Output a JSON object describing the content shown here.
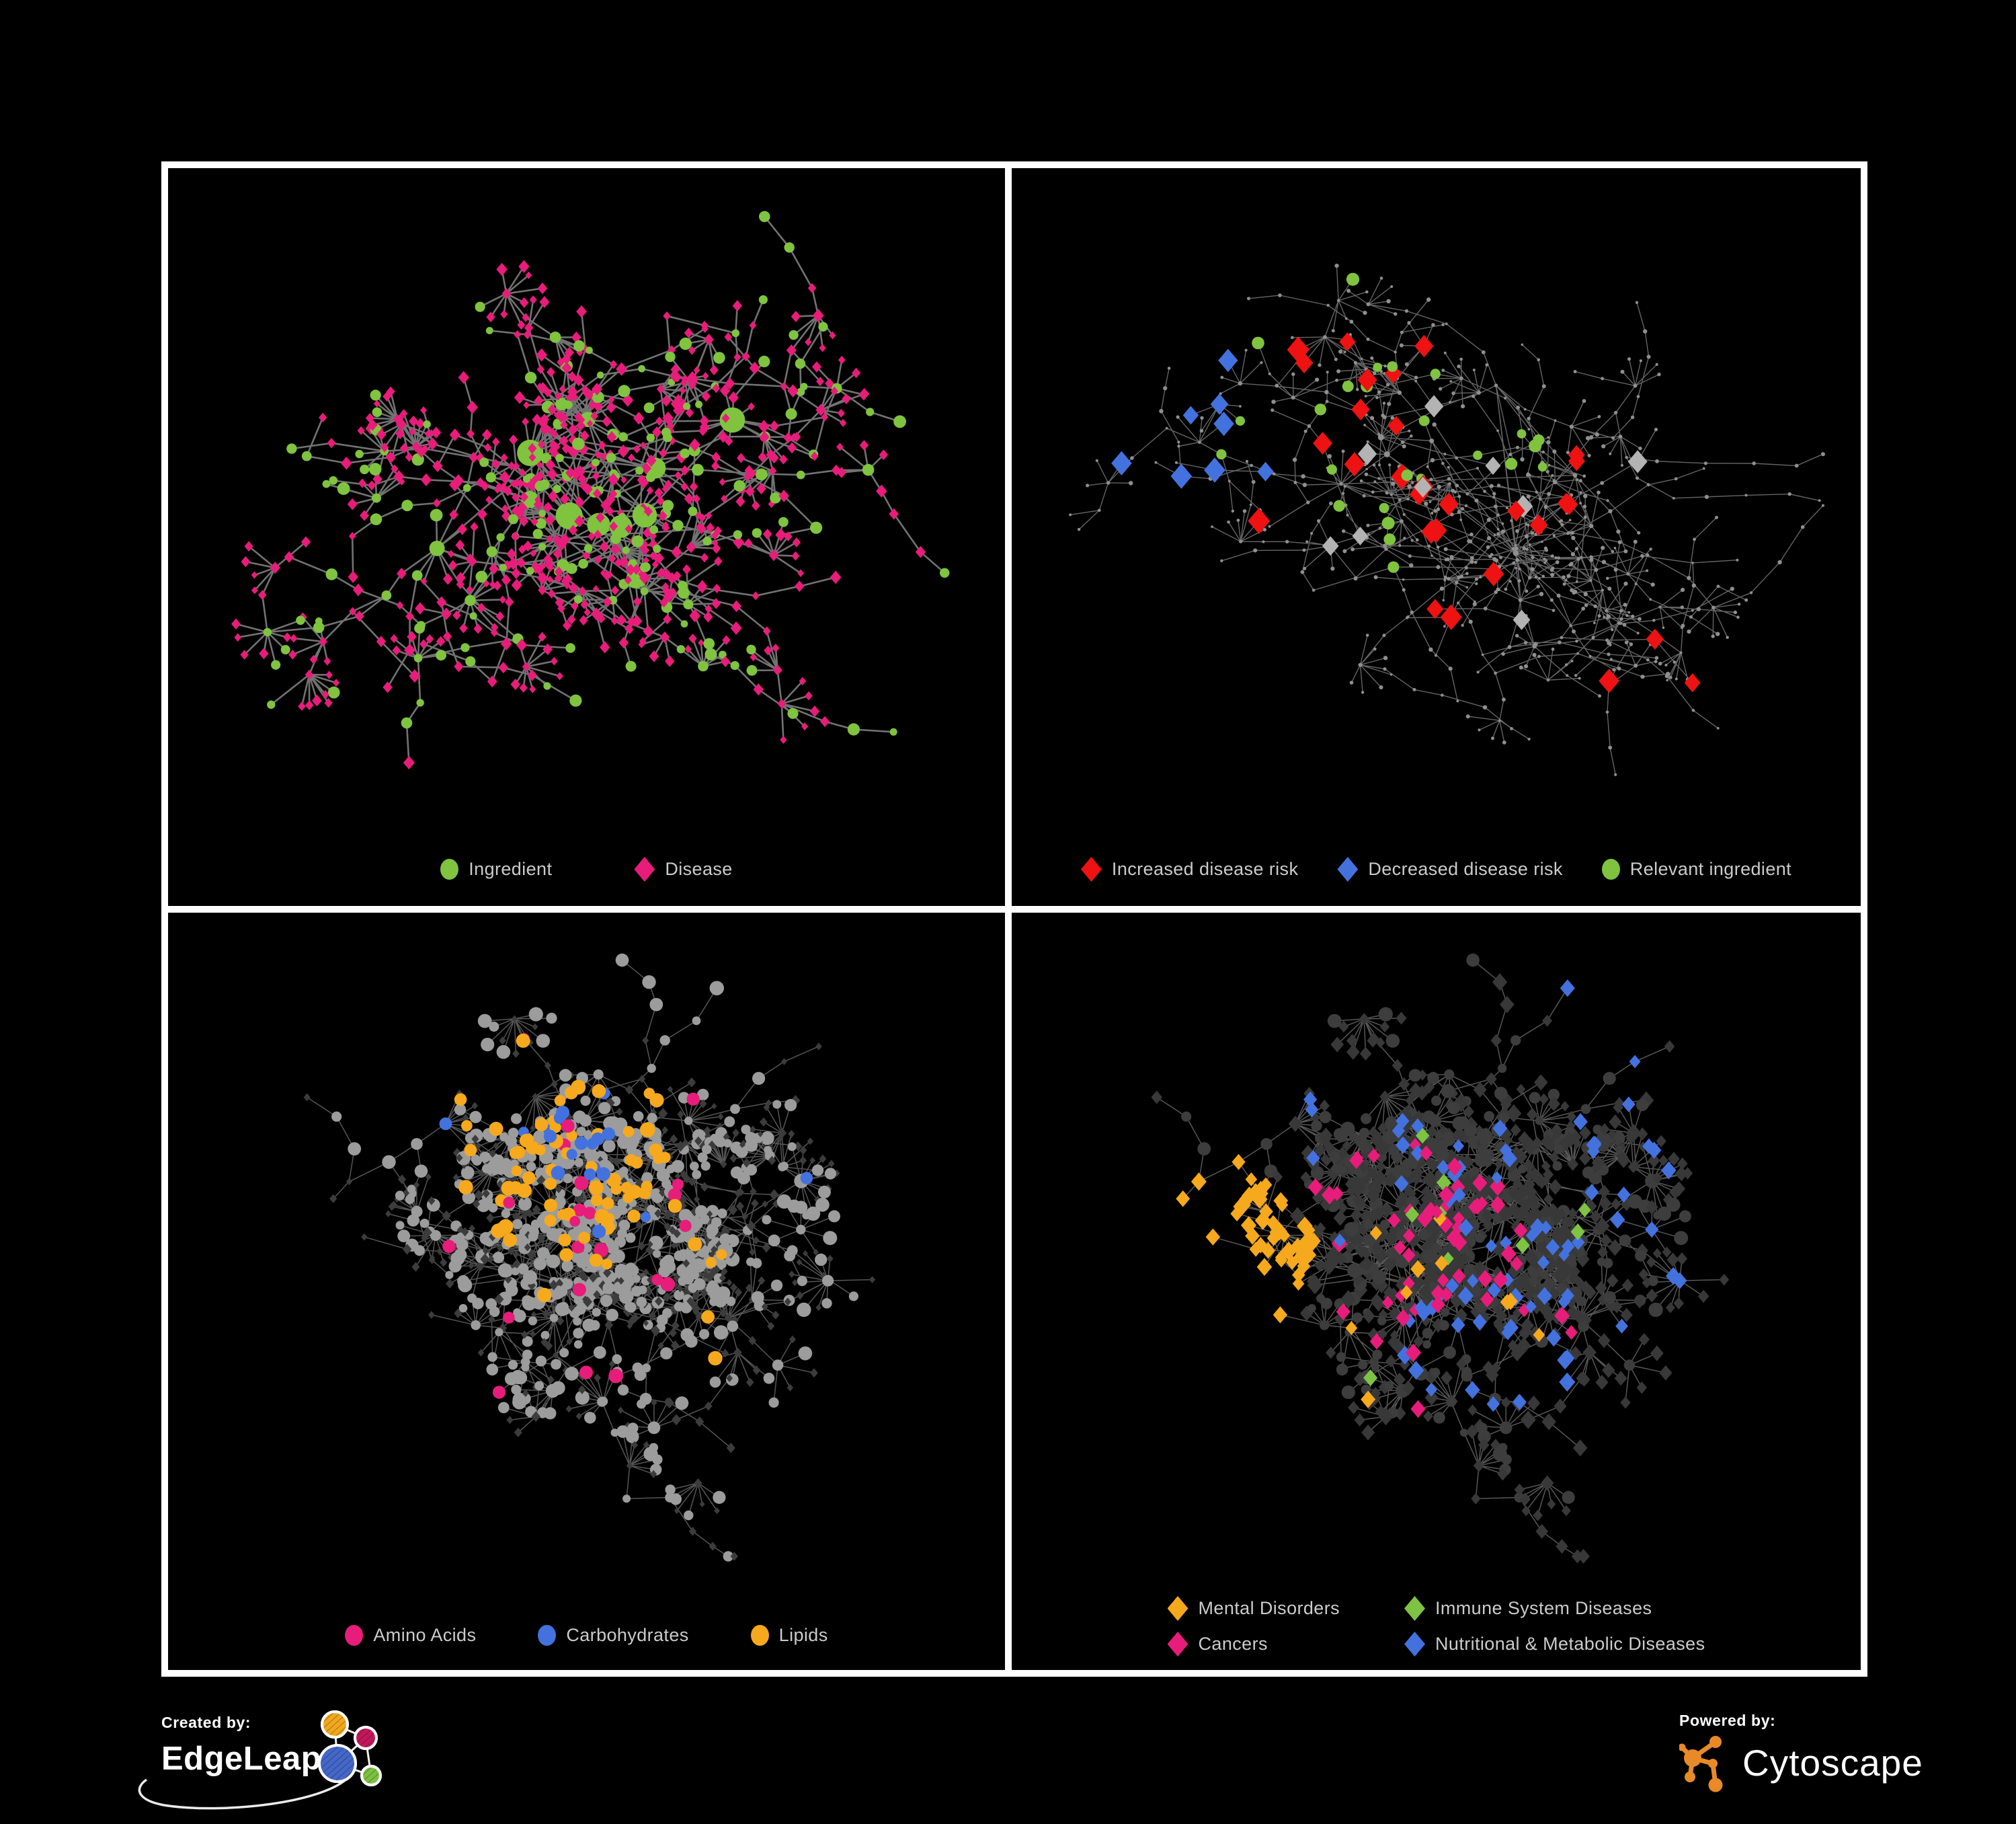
{
  "colors": {
    "background": "#000000",
    "frame": "#FFFFFF",
    "legend_text": "#CBCBCB",
    "green": "#80C33F",
    "pink": "#E81C7A",
    "red": "#EE1212",
    "blue": "#4372DF",
    "orange": "#F6A91C",
    "silver": "#B3B3B3",
    "edgeleap_blue": "#4467C8",
    "edgeleap_pink": "#C2185B",
    "cytoscape_orange": "#E98A28"
  },
  "footer": {
    "created_by": "Created by:",
    "edgeleap": "EdgeLeap",
    "powered_by": "Powered by:",
    "cytoscape": "Cytoscape"
  },
  "panels": [
    {
      "id": "ingredient-disease-network",
      "legend": [
        {
          "label": "Ingredient",
          "shape": "circle",
          "color": "#80C33F"
        },
        {
          "label": "Disease",
          "shape": "diamond",
          "color": "#E81C7A"
        }
      ],
      "render": {
        "seed": 20,
        "scheme": "typed",
        "hubs": 11,
        "hubLinks": 4,
        "branchMin": 3,
        "branchMax": 6,
        "branchLen": 4,
        "step": 52,
        "fanP": 0.17,
        "subP": 0.3,
        "fanMin": 4,
        "fanMax": 9,
        "fanR": 42,
        "hubFanP": 0.55,
        "edge": {
          "color": "#868686",
          "width": 2.6,
          "opacity": 0.85
        },
        "circle": {
          "color": "#80C33F",
          "r": 7,
          "hubR": 15
        },
        "circleShare": 0.33,
        "circleLeafShare": 0.16,
        "diamond": {
          "color": "#E81C7A",
          "r": 6.6
        },
        "groups": []
      }
    },
    {
      "id": "disease-risk-network",
      "legend": [
        {
          "label": "Increased disease risk",
          "shape": "diamond",
          "color": "#EE1212"
        },
        {
          "label": "Decreased disease risk",
          "shape": "diamond",
          "color": "#4372DF"
        },
        {
          "label": "Relevant ingredient",
          "shape": "circle",
          "color": "#80C33F"
        }
      ],
      "render": {
        "seed": 57,
        "scheme": "dim",
        "hubs": 9,
        "hubLinks": 3,
        "branchMin": 3,
        "branchMax": 6,
        "branchLen": 5,
        "step": 48,
        "fanP": 0.12,
        "subP": 0.32,
        "fanMin": 4,
        "fanMax": 8,
        "fanR": 40,
        "hubFanP": 0.3,
        "edge": {
          "color": "#6F6F6F",
          "width": 1.4,
          "opacity": 0.9
        },
        "circle": {
          "color": "#8F8F8F",
          "r": 2.4,
          "hubR": 3.6
        },
        "circleShare": 1.0,
        "diamond": {
          "color": "#8F8F8F",
          "r": 2.4
        },
        "groups": [
          {
            "shape": "diamond",
            "color": "#EE1212",
            "r": 14,
            "count": 26,
            "f": [
              0.45,
              0.38
            ],
            "fr": 0.33
          },
          {
            "shape": "diamond",
            "color": "#EE1212",
            "r": 13,
            "count": 3,
            "f": [
              0.78,
              0.82
            ],
            "fr": 0.1
          },
          {
            "shape": "diamond",
            "color": "#4372DF",
            "r": 13.5,
            "count": 8,
            "f": [
              0.22,
              0.38
            ],
            "fr": 0.15
          },
          {
            "shape": "diamond",
            "color": "#4372DF",
            "r": 13,
            "count": 2,
            "f": [
              0.92,
              0.36
            ],
            "fr": 0.06
          },
          {
            "shape": "diamond",
            "color": "#B3B3B3",
            "r": 13,
            "count": 9,
            "f": [
              0.45,
              0.42
            ],
            "fr": 0.35
          },
          {
            "shape": "circle",
            "color": "#80C33F",
            "r": 8,
            "count": 26,
            "f": [
              0.38,
              0.4
            ],
            "fr": 0.34
          }
        ]
      }
    },
    {
      "id": "compound-classes-network",
      "legend": [
        {
          "label": "Amino Acids",
          "shape": "circle",
          "color": "#E81C7A"
        },
        {
          "label": "Carbohydrates",
          "shape": "circle",
          "color": "#4372DF"
        },
        {
          "label": "Lipids",
          "shape": "circle",
          "color": "#F6A91C"
        }
      ],
      "render": {
        "seed": 88,
        "scheme": "dim",
        "hubs": 10,
        "hubLinks": 3,
        "branchMin": 3,
        "branchMax": 7,
        "branchLen": 4,
        "step": 46,
        "fanP": 0.2,
        "subP": 0.3,
        "fanMin": 5,
        "fanMax": 13,
        "fanR": 44,
        "hubFanP": 0.6,
        "edge": {
          "color": "#9A9A9A",
          "width": 1.5,
          "opacity": 0.55
        },
        "circle": {
          "color": "#9C9C9C",
          "r": 8,
          "hubR": 12
        },
        "circleShare": 0.52,
        "diamond": {
          "color": "#3C3C3C",
          "r": 5.5
        },
        "groups": [
          {
            "shape": "circle",
            "color": "#F6A91C",
            "r": 9.5,
            "count": 58,
            "f": [
              0.45,
              0.32
            ],
            "fr": 0.17
          },
          {
            "shape": "circle",
            "color": "#F6A91C",
            "r": 9,
            "count": 16,
            "f": [
              0.5,
              0.55
            ],
            "fr": 0.55
          },
          {
            "shape": "circle",
            "color": "#4372DF",
            "r": 9,
            "count": 15,
            "f": [
              0.49,
              0.3
            ],
            "fr": 0.09
          },
          {
            "shape": "circle",
            "color": "#4372DF",
            "r": 8.5,
            "count": 4,
            "f": [
              0.5,
              0.6
            ],
            "fr": 0.5
          },
          {
            "shape": "circle",
            "color": "#E81C7A",
            "r": 9,
            "count": 22,
            "f": [
              0.48,
              0.5
            ],
            "fr": 0.6
          }
        ]
      }
    },
    {
      "id": "disease-categories-network",
      "legend": [
        {
          "label": "Mental Disorders",
          "shape": "diamond",
          "color": "#F6A91C"
        },
        {
          "label": "Immune System Diseases",
          "shape": "diamond",
          "color": "#7EC342"
        },
        {
          "label": "Cancers",
          "shape": "diamond",
          "color": "#E81C7A"
        },
        {
          "label": "Nutritional & Metabolic Diseases",
          "shape": "diamond",
          "color": "#4372DF"
        }
      ],
      "render": {
        "seed": 88,
        "scheme": "dim",
        "hubs": 10,
        "hubLinks": 3,
        "branchMin": 3,
        "branchMax": 7,
        "branchLen": 4,
        "step": 46,
        "fanP": 0.2,
        "subP": 0.3,
        "fanMin": 5,
        "fanMax": 13,
        "fanR": 44,
        "hubFanP": 0.6,
        "edge": {
          "color": "#616161",
          "width": 1.5,
          "opacity": 0.9
        },
        "circle": {
          "color": "#3D3D3D",
          "r": 8,
          "hubR": 10
        },
        "circleShare": 0.3,
        "diamond": {
          "color": "#383838",
          "r": 9
        },
        "groups": [
          {
            "shape": "diamond",
            "color": "#F6A91C",
            "r": 10,
            "count": 85,
            "f": [
              0.2,
              0.5
            ],
            "fr": 0.15
          },
          {
            "shape": "diamond",
            "color": "#F6A91C",
            "r": 9.5,
            "count": 10,
            "f": [
              0.4,
              0.75
            ],
            "fr": 0.35
          },
          {
            "shape": "diamond",
            "color": "#E81C7A",
            "r": 10,
            "count": 48,
            "f": [
              0.43,
              0.5
            ],
            "fr": 0.18
          },
          {
            "shape": "diamond",
            "color": "#E81C7A",
            "r": 9.5,
            "count": 6,
            "f": [
              0.92,
              0.25
            ],
            "fr": 0.07
          },
          {
            "shape": "diamond",
            "color": "#E81C7A",
            "r": 9.5,
            "count": 8,
            "f": [
              0.5,
              0.85
            ],
            "fr": 0.3
          },
          {
            "shape": "diamond",
            "color": "#4372DF",
            "r": 10,
            "count": 28,
            "f": [
              0.57,
              0.66
            ],
            "fr": 0.12
          },
          {
            "shape": "diamond",
            "color": "#4372DF",
            "r": 9.5,
            "count": 30,
            "f": [
              0.55,
              0.13
            ],
            "fr": 0.4
          },
          {
            "shape": "diamond",
            "color": "#4372DF",
            "r": 9.5,
            "count": 20,
            "f": [
              0.85,
              0.42
            ],
            "fr": 0.25
          },
          {
            "shape": "diamond",
            "color": "#7EC342",
            "r": 9.5,
            "count": 9,
            "f": [
              0.5,
              0.45
            ],
            "fr": 0.5
          }
        ]
      }
    }
  ]
}
